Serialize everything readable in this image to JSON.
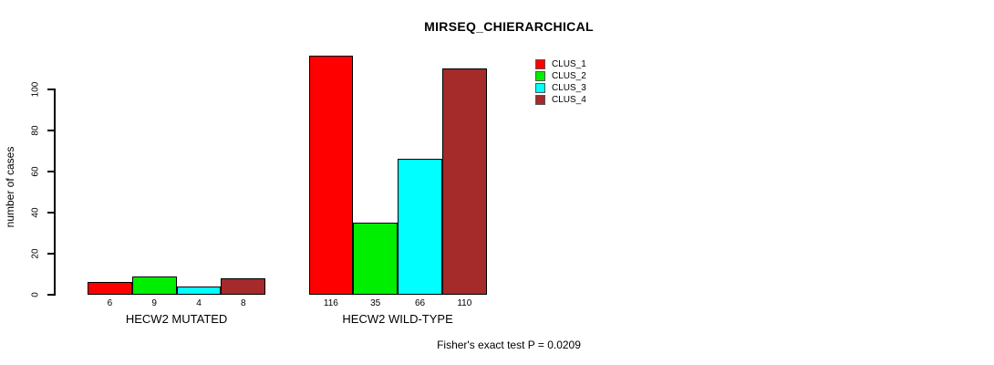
{
  "header": {
    "title": "MIRSEQ_CHIERARCHICAL"
  },
  "footer": {
    "annotation": "Fisher's exact test P = 0.0209"
  },
  "chart_data": {
    "type": "bar",
    "title": "MIRSEQ_CHIERARCHICAL",
    "xlabel": "",
    "ylabel": "number of cases",
    "categories": [
      "HECW2 MUTATED",
      "HECW2 WILD-TYPE"
    ],
    "series": [
      {
        "name": "CLUS_1",
        "color": "#ff0000",
        "values": [
          6,
          116
        ]
      },
      {
        "name": "CLUS_2",
        "color": "#00ee00",
        "values": [
          9,
          35
        ]
      },
      {
        "name": "CLUS_3",
        "color": "#00ffff",
        "values": [
          4,
          66
        ]
      },
      {
        "name": "CLUS_4",
        "color": "#a52a2a",
        "values": [
          8,
          110
        ]
      }
    ],
    "bar_value_labels": [
      [
        6,
        9,
        4,
        8
      ],
      [
        116,
        35,
        66,
        110
      ]
    ],
    "yticks": [
      0,
      20,
      40,
      60,
      80,
      100
    ],
    "ylim": [
      0,
      116
    ],
    "grid": false,
    "legend_position": "top-right",
    "legend_entries": [
      "CLUS_1",
      "CLUS_2",
      "CLUS_3",
      "CLUS_4"
    ],
    "annotation": "Fisher's exact test P = 0.0209"
  }
}
